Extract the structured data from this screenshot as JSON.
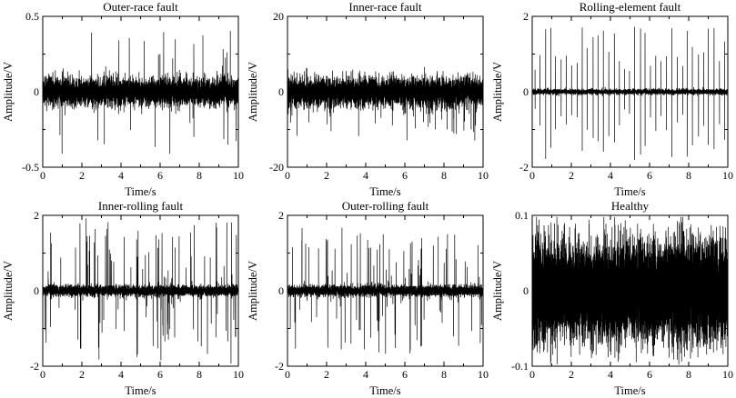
{
  "figure": {
    "background": "#ffffff",
    "line_color": "#000000",
    "layout": "2x3-subplot-grid"
  },
  "chart_data": [
    {
      "type": "line",
      "title": "Outer-race fault",
      "xlabel": "Time/s",
      "ylabel": "Amplitude/V",
      "xlim": [
        0,
        10
      ],
      "ylim": [
        -0.5,
        0.5
      ],
      "xticks": [
        0,
        2,
        4,
        6,
        8,
        10
      ],
      "xtick_labels": [
        "0",
        "2",
        "4",
        "6",
        "8",
        "10"
      ],
      "yticks": [
        -0.5,
        0,
        0.5
      ],
      "ytick_labels": [
        "-0.5",
        "0",
        "0.5"
      ],
      "grid": false,
      "legend": "none",
      "signal": {
        "model": "gaussian-noise-with-impulses",
        "seed": 11,
        "samples": 5200,
        "noise_std": 0.045,
        "impulse_prob": 0.006,
        "impulse_min": 0.12,
        "impulse_max": 0.42,
        "neg_bias": 0.5,
        "pos_scale": 1,
        "period": 0
      }
    },
    {
      "type": "line",
      "title": "Inner-race fault",
      "xlabel": "Time/s",
      "ylabel": "Amplitude/V",
      "xlim": [
        0,
        10
      ],
      "ylim": [
        -20,
        20
      ],
      "xticks": [
        0,
        2,
        4,
        6,
        8,
        10
      ],
      "xtick_labels": [
        "0",
        "2",
        "4",
        "6",
        "8",
        "10"
      ],
      "yticks": [
        -20,
        0,
        20
      ],
      "ytick_labels": [
        "-20",
        "0",
        "20"
      ],
      "grid": false,
      "legend": "none",
      "signal": {
        "model": "gaussian-noise-with-impulses",
        "seed": 22,
        "samples": 5200,
        "noise_std": 1.9,
        "impulse_prob": 0.011,
        "impulse_min": 2.5,
        "impulse_max": 13,
        "neg_bias": 0.7,
        "pos_scale": 0.55,
        "period": 0
      }
    },
    {
      "type": "line",
      "title": "Rolling-element fault",
      "xlabel": "Time/s",
      "ylabel": "Amplitude/V",
      "xlim": [
        0,
        10
      ],
      "ylim": [
        -2,
        2
      ],
      "xticks": [
        0,
        2,
        4,
        6,
        8,
        10
      ],
      "xtick_labels": [
        "0",
        "2",
        "4",
        "6",
        "8",
        "10"
      ],
      "yticks": [
        -2,
        0,
        2
      ],
      "ytick_labels": [
        "-2",
        "0",
        "2"
      ],
      "grid": false,
      "legend": "none",
      "signal": {
        "model": "gaussian-noise-with-periodic-impulses",
        "seed": 33,
        "samples": 5200,
        "noise_std": 0.035,
        "impulse_prob": 0,
        "impulse_min": 0.5,
        "impulse_max": 1.75,
        "neg_bias": 0.5,
        "pos_scale": 1,
        "period": 0.27
      }
    },
    {
      "type": "line",
      "title": "Inner-rolling fault",
      "xlabel": "Time/s",
      "ylabel": "Amplitude/V",
      "xlim": [
        0,
        10
      ],
      "ylim": [
        -2,
        2
      ],
      "xticks": [
        0,
        2,
        4,
        6,
        8,
        10
      ],
      "xtick_labels": [
        "0",
        "2",
        "4",
        "6",
        "8",
        "10"
      ],
      "yticks": [
        -2,
        0,
        2
      ],
      "ytick_labels": [
        "-2",
        "0",
        "2"
      ],
      "grid": false,
      "legend": "none",
      "signal": {
        "model": "gaussian-noise-with-impulses",
        "seed": 44,
        "samples": 5200,
        "noise_std": 0.07,
        "impulse_prob": 0.02,
        "impulse_min": 0.25,
        "impulse_max": 1.95,
        "neg_bias": 0.5,
        "pos_scale": 1,
        "period": 0
      }
    },
    {
      "type": "line",
      "title": "Outer-rolling fault",
      "xlabel": "Time/s",
      "ylabel": "Amplitude/V",
      "xlim": [
        0,
        10
      ],
      "ylim": [
        -2,
        2
      ],
      "xticks": [
        0,
        2,
        4,
        6,
        8,
        10
      ],
      "xtick_labels": [
        "0",
        "2",
        "4",
        "6",
        "8",
        "10"
      ],
      "yticks": [
        -2,
        0,
        2
      ],
      "ytick_labels": [
        "-2",
        "0",
        "2"
      ],
      "grid": false,
      "legend": "none",
      "signal": {
        "model": "gaussian-noise-with-impulses",
        "seed": 55,
        "samples": 5200,
        "noise_std": 0.07,
        "impulse_prob": 0.018,
        "impulse_min": 0.25,
        "impulse_max": 1.7,
        "neg_bias": 0.5,
        "pos_scale": 1,
        "period": 0
      }
    },
    {
      "type": "line",
      "title": "Healthy",
      "xlabel": "Time/s",
      "ylabel": "Amplitude/V",
      "xlim": [
        0,
        10
      ],
      "ylim": [
        -0.1,
        0.1
      ],
      "xticks": [
        0,
        2,
        4,
        6,
        8,
        10
      ],
      "xtick_labels": [
        "0",
        "2",
        "4",
        "6",
        "8",
        "10"
      ],
      "yticks": [
        -0.1,
        0,
        0.1
      ],
      "ytick_labels": [
        "-0.1",
        "0",
        "0.1"
      ],
      "grid": false,
      "legend": "none",
      "signal": {
        "model": "gaussian-noise-with-impulses",
        "seed": 66,
        "samples": 9000,
        "noise_std": 0.03,
        "impulse_prob": 0.003,
        "impulse_min": 0.055,
        "impulse_max": 0.095,
        "neg_bias": 0.5,
        "pos_scale": 1,
        "period": 0
      }
    }
  ]
}
